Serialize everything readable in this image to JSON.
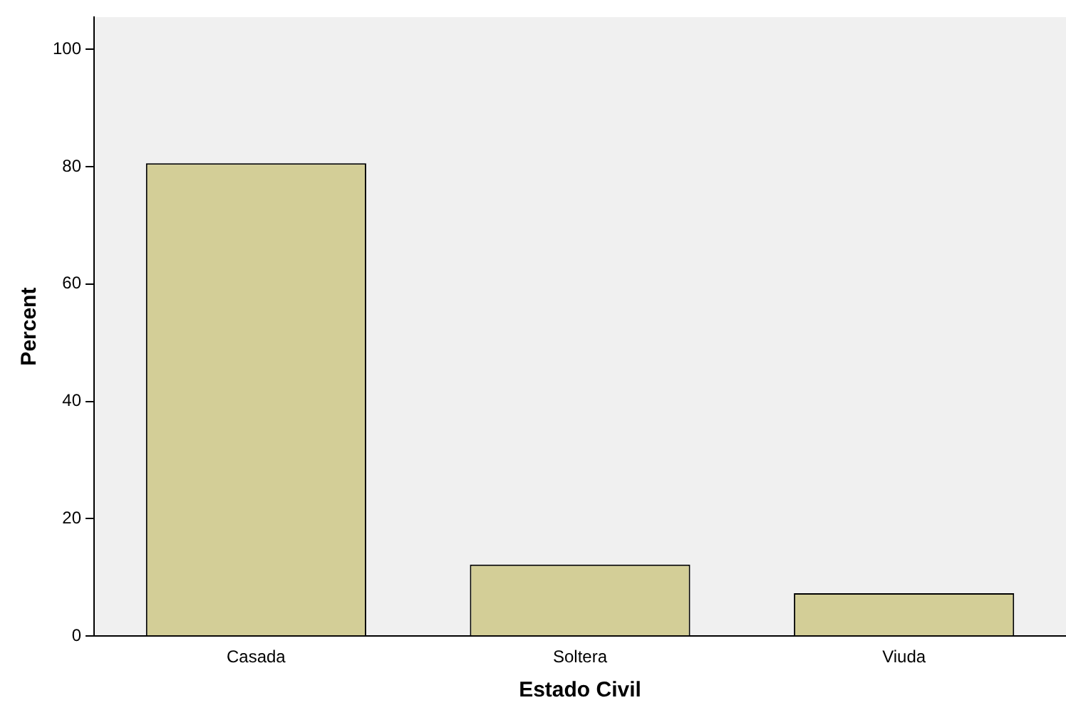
{
  "chart_data": {
    "type": "bar",
    "xlabel": "Estado Civil",
    "ylabel": "Percent",
    "categories": [
      "Casada",
      "Soltera",
      "Viuda"
    ],
    "values": [
      80.6,
      12.2,
      7.3
    ],
    "color": "#d3ce97",
    "ylim": [
      0,
      105.5
    ],
    "yticks": [
      0,
      20,
      40,
      60,
      80,
      100
    ],
    "grid": false,
    "legend": false
  }
}
